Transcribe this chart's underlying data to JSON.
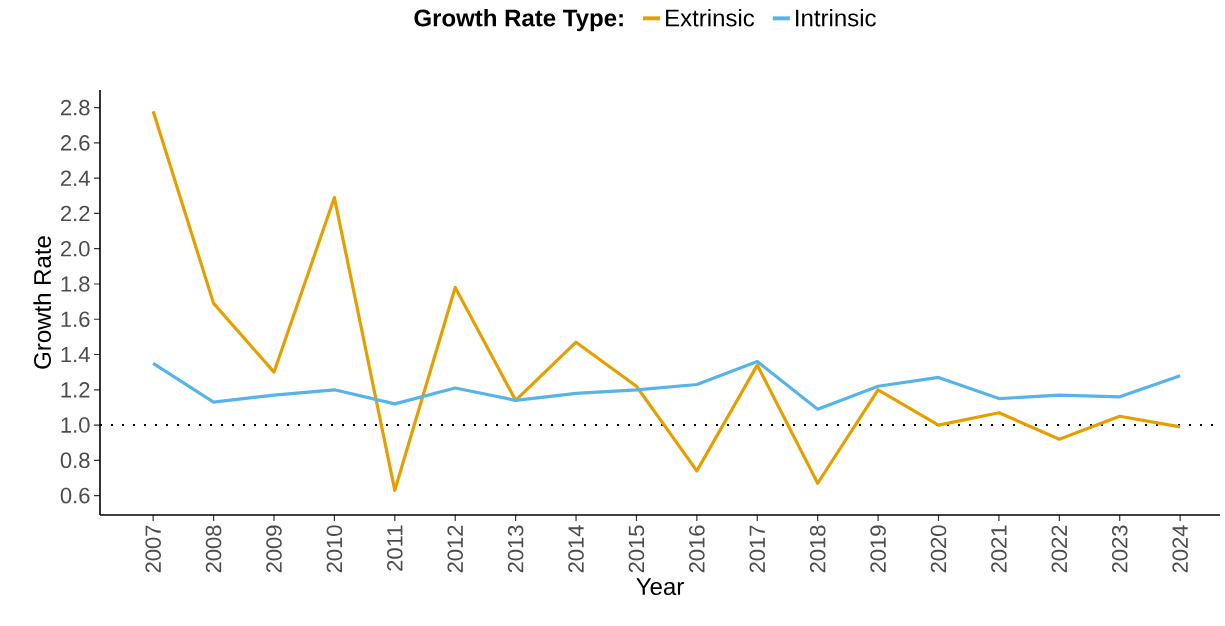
{
  "chart_data": {
    "type": "line",
    "xlabel": "Year",
    "ylabel": "Growth Rate",
    "legend_title": "Growth Rate Type:",
    "categories": [
      "2007",
      "2008",
      "2009",
      "2010",
      "2011",
      "2012",
      "2013",
      "2014",
      "2015",
      "2016",
      "2017",
      "2018",
      "2019",
      "2020",
      "2021",
      "2022",
      "2023",
      "2024"
    ],
    "series": [
      {
        "name": "Extrinsic",
        "color": "#e69f00",
        "values": [
          2.78,
          1.69,
          1.3,
          2.29,
          0.63,
          1.78,
          1.14,
          1.47,
          1.22,
          0.74,
          1.34,
          0.67,
          1.2,
          1.0,
          1.07,
          0.92,
          1.05,
          0.99
        ]
      },
      {
        "name": "Intrinsic",
        "color": "#56b4e9",
        "values": [
          1.35,
          1.13,
          1.17,
          1.2,
          1.12,
          1.21,
          1.14,
          1.18,
          1.2,
          1.23,
          1.36,
          1.09,
          1.22,
          1.27,
          1.15,
          1.17,
          1.16,
          1.28
        ]
      }
    ],
    "ylim": [
      0.49,
      2.9
    ],
    "yticks": [
      0.6,
      0.8,
      {
        "value": 1.0,
        "label": "1.0"
      },
      1.2,
      1.4,
      1.6,
      1.8,
      {
        "value": 2.0,
        "label": "2.0"
      },
      2.2,
      2.4,
      2.6,
      2.8
    ],
    "ref_lines": [
      {
        "axis": "y",
        "value": 1.0,
        "color": "#000000",
        "line_style": "dotted"
      }
    ],
    "grid": false,
    "legend": "top",
    "marker": "none",
    "line_style": "solid"
  }
}
